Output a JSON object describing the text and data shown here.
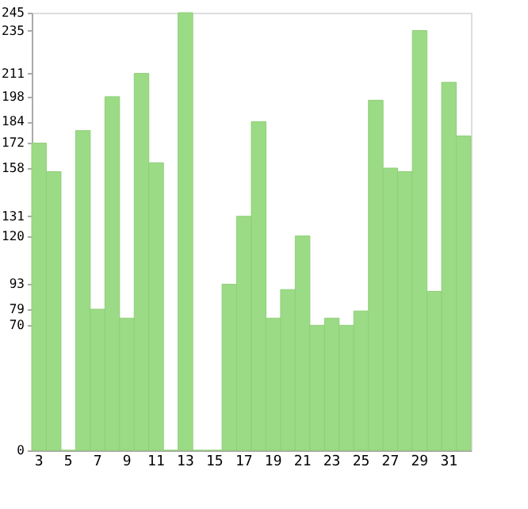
{
  "chart_data": {
    "type": "bar",
    "categories": [
      "3",
      null,
      "5",
      null,
      "7",
      null,
      "9",
      null,
      "11",
      null,
      "13",
      null,
      "15",
      null,
      "17",
      null,
      "19",
      null,
      "21",
      null,
      "23",
      null,
      "25",
      null,
      "27",
      null,
      "29",
      null,
      "31",
      null
    ],
    "values": [
      172,
      156,
      0,
      179,
      79,
      198,
      74,
      211,
      161,
      0,
      245,
      0,
      0,
      93,
      131,
      184,
      74,
      90,
      120,
      70,
      74,
      70,
      78,
      196,
      158,
      156,
      235,
      89,
      206,
      176
    ],
    "color": "#9bdb85",
    "ylim": [
      0,
      245
    ],
    "yticks": [
      0,
      70,
      79,
      93,
      120,
      131,
      158,
      172,
      184,
      198,
      211,
      235,
      245
    ],
    "grid": false
  }
}
